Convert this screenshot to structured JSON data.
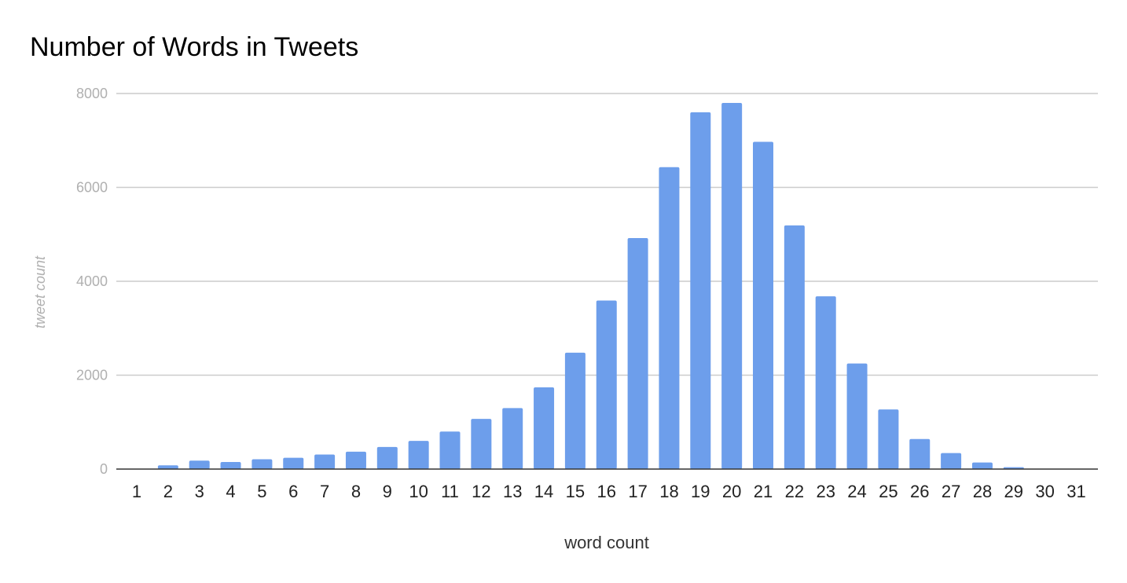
{
  "chart_data": {
    "type": "bar",
    "title": "Number of Words in Tweets",
    "xlabel": "word count",
    "ylabel": "tweet count",
    "categories": [
      "1",
      "2",
      "3",
      "4",
      "5",
      "6",
      "7",
      "8",
      "9",
      "10",
      "11",
      "12",
      "13",
      "14",
      "15",
      "16",
      "17",
      "18",
      "19",
      "20",
      "21",
      "22",
      "23",
      "24",
      "25",
      "26",
      "27",
      "28",
      "29",
      "30",
      "31"
    ],
    "values": [
      0,
      80,
      180,
      150,
      210,
      240,
      310,
      370,
      470,
      600,
      800,
      1070,
      1300,
      1740,
      2480,
      3590,
      4920,
      6430,
      7600,
      7800,
      6970,
      5190,
      3680,
      2250,
      1270,
      640,
      340,
      140,
      40,
      0,
      0
    ],
    "ylim": [
      0,
      8000
    ],
    "yticks": [
      "0",
      "2000",
      "4000",
      "6000",
      "8000"
    ],
    "grid": true,
    "legend": "none",
    "bar_color": "#6d9eeb",
    "grid_color": "#cccccc",
    "axis_color": "#333333"
  }
}
